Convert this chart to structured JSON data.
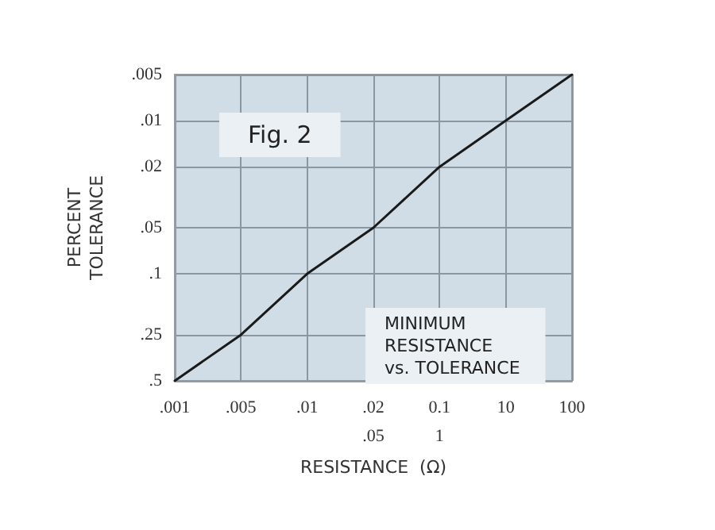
{
  "chart_data": {
    "type": "line",
    "xlabel": "RESISTANCE  (Ω)",
    "ylabel": "PERCENT\nTOLERANCE",
    "categories": [
      ".001",
      ".005",
      ".01",
      ".02\n.05",
      "0.1\n1",
      "10",
      "100"
    ],
    "series": [
      {
        "color": "#1a1a1a",
        "values": [
          0.5,
          0.25,
          0.1,
          0.05,
          0.02,
          0.01,
          0.005
        ]
      }
    ],
    "ylim": [
      0.5,
      0.005
    ],
    "yticks": [
      {
        "value": 0.5,
        "label": ".5"
      },
      {
        "value": 0.25,
        "label": ".25"
      },
      {
        "value": 0.1,
        "label": ".1"
      },
      {
        "value": 0.05,
        "label": ".05"
      },
      {
        "value": 0.02,
        "label": ".02"
      },
      {
        "value": 0.01,
        "label": ".01"
      },
      {
        "value": 0.005,
        "label": ".005"
      }
    ],
    "annotations": [
      "Fig. 2",
      "MINIMUM\nRESISTANCE\nvs. TOLERANCE"
    ],
    "grid": true,
    "log": "y",
    "marker": "none",
    "line_style": "solid"
  }
}
